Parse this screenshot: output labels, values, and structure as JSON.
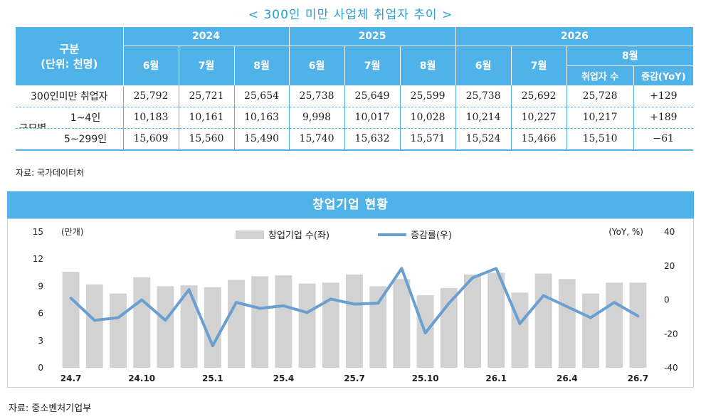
{
  "title": "< 300인 미만 사업체 취업자 추이 >",
  "table": {
    "header": {
      "category": "구분",
      "unit": "(단위: 천명)",
      "years": [
        "2024",
        "2025",
        "2026"
      ],
      "months_2024": [
        "6월",
        "7월",
        "8월"
      ],
      "months_2025": [
        "6월",
        "7월",
        "8월"
      ],
      "months_2026": [
        "6월",
        "7월"
      ],
      "aug_2026": "8월",
      "aug_cols": [
        "취업자 수",
        "증감(YoY)"
      ]
    },
    "group_label": "규모별",
    "rows": [
      {
        "label": "300인미만 취업자",
        "values": [
          "25,792",
          "25,721",
          "25,654",
          "25,738",
          "25,649",
          "25,599",
          "25,738",
          "25,692",
          "25,728",
          "+129"
        ]
      },
      {
        "label": "1~4인",
        "values": [
          "10,183",
          "10,161",
          "10,163",
          "9,998",
          "10,017",
          "10,028",
          "10,214",
          "10,227",
          "10,217",
          "+189"
        ]
      },
      {
        "label": "5~299인",
        "values": [
          "15,609",
          "15,560",
          "15,490",
          "15,740",
          "15,632",
          "15,571",
          "15,524",
          "15,466",
          "15,510",
          "−61"
        ]
      }
    ]
  },
  "source1": "자료: 국가데이터처",
  "chart_title": "창업기업 현황",
  "source2": "자료: 중소벤처기업부",
  "chart_data": {
    "type": "bar",
    "title": "창업기업 현황",
    "left_unit": "(만개)",
    "right_unit": "(YoY, %)",
    "categories": [
      "24.7",
      "24.8",
      "24.9",
      "24.10",
      "24.11",
      "24.12",
      "25.1",
      "25.2",
      "25.3",
      "25.4",
      "25.5",
      "25.6",
      "25.7",
      "25.8",
      "25.9",
      "25.10",
      "25.11",
      "25.12",
      "26.1",
      "26.2",
      "26.3",
      "26.4",
      "26.5",
      "26.6",
      "26.7"
    ],
    "tick_labels": [
      "24.7",
      "24.10",
      "25.1",
      "25.4",
      "25.7",
      "25.10",
      "26.1",
      "26.4",
      "26.7"
    ],
    "series": [
      {
        "name": "창업기업 수(좌)",
        "axis": "left",
        "color": "#d3d2d3",
        "values": [
          10.6,
          9.2,
          8.2,
          10.0,
          9.0,
          9.1,
          8.9,
          9.7,
          10.1,
          10.2,
          9.3,
          9.4,
          10.3,
          9.0,
          9.8,
          8.0,
          8.8,
          10.3,
          10.5,
          8.3,
          10.4,
          9.8,
          8.2,
          9.4,
          9.4
        ]
      },
      {
        "name": "증감률(우)",
        "axis": "right",
        "color": "#6a9fd2",
        "values": [
          1,
          -12,
          -10.5,
          0,
          -12,
          6,
          -27,
          -1.5,
          -5,
          -3.5,
          -7.5,
          0.5,
          -2.5,
          -2,
          18.5,
          -19.5,
          -2,
          13,
          18.5,
          -14,
          2.5,
          -4,
          -10.5,
          -1.5,
          -9.5
        ]
      }
    ],
    "ylim_left": [
      0,
      15
    ],
    "yticks_left": [
      0,
      3,
      6,
      9,
      12,
      15
    ],
    "ylim_right": [
      -40,
      40
    ],
    "yticks_right": [
      -40,
      -20,
      0,
      20,
      40
    ],
    "legend_position": "top-center"
  }
}
